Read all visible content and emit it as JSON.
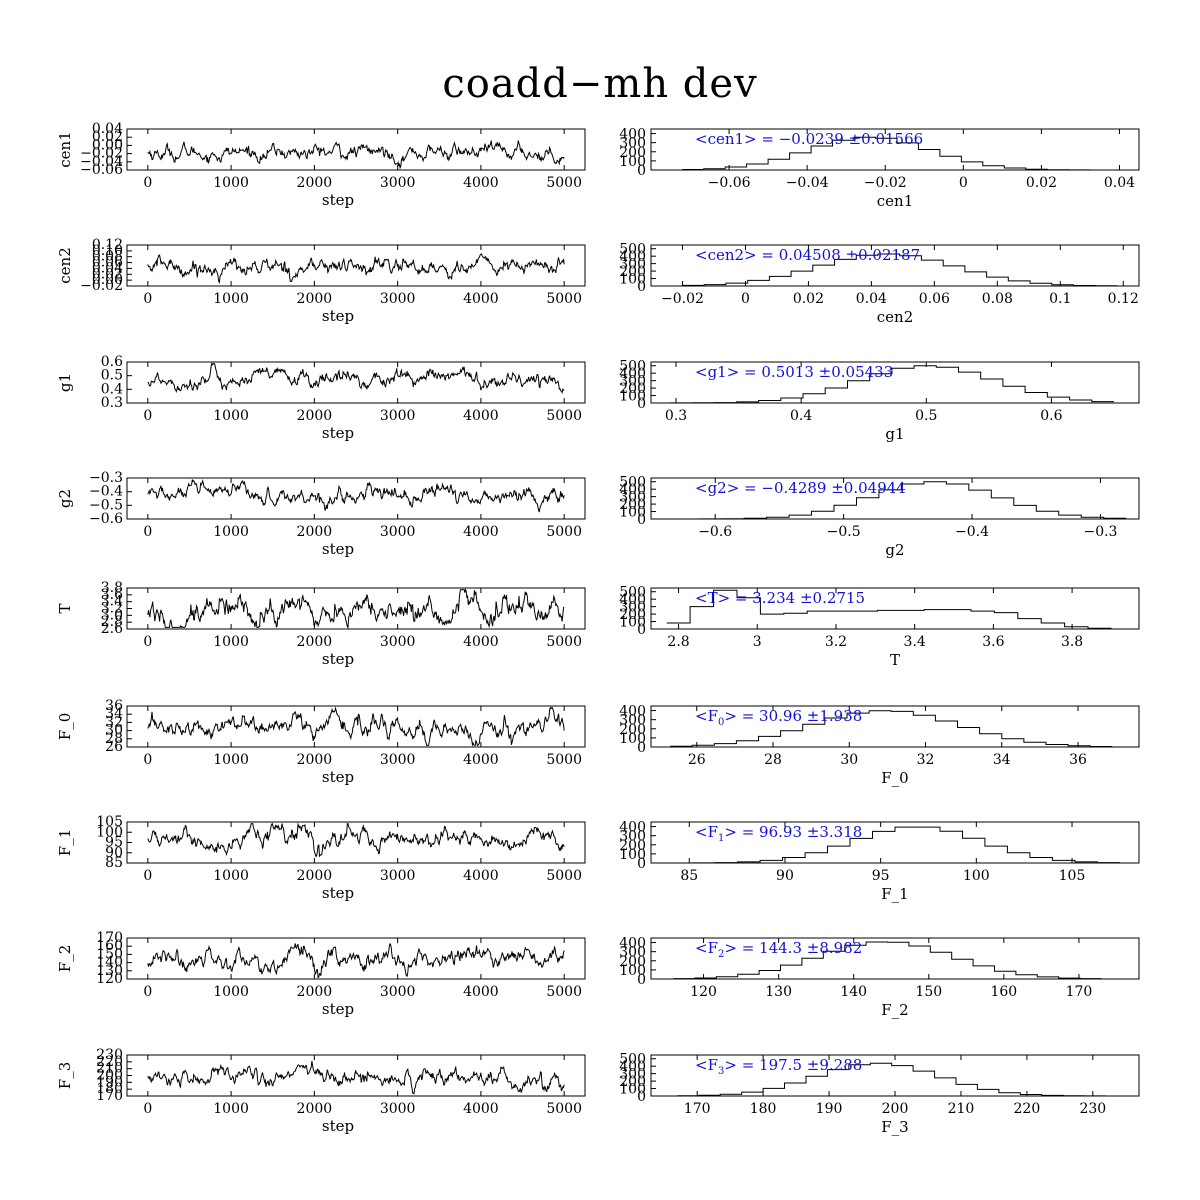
{
  "title": "coadd−mh dev",
  "chart_data": [
    {
      "param": "cen1",
      "trace": {
        "type": "line",
        "xlabel": "step",
        "ylabel": "cen1",
        "xlim": [
          -250,
          5250
        ],
        "xticks": [
          0,
          1000,
          2000,
          3000,
          4000,
          5000
        ],
        "ylim": [
          -0.075,
          0.045
        ],
        "yticks": [
          "0.04",
          "0.02",
          "0.00",
          "−0.02",
          "−0.04",
          "−0.06"
        ],
        "ytick_values": [
          0.04,
          0.02,
          0.0,
          -0.02,
          -0.04,
          -0.06
        ],
        "n_steps": 5000,
        "mean": -0.0239,
        "sd": 0.01566
      },
      "hist": {
        "type": "histogram",
        "xlabel": "cen1",
        "xlim": [
          -0.08,
          0.045
        ],
        "xticks": [
          -0.06,
          -0.04,
          -0.02,
          0,
          0.02,
          0.04
        ],
        "xtick_labels": [
          "−0.06",
          "−0.04",
          "−0.02",
          "0",
          "0.02",
          "0.04"
        ],
        "ylim": [
          0,
          450
        ],
        "yticks": [
          0,
          100,
          200,
          300,
          400
        ],
        "bins": [
          -0.072,
          0.038
        ],
        "mean": -0.0239,
        "sd": 0.01566,
        "peak": 360,
        "label_prefix": "<cen1> = ",
        "mean_text": "−0.0239",
        "sd_text": "±0.01566"
      }
    },
    {
      "param": "cen2",
      "trace": {
        "type": "line",
        "xlabel": "step",
        "ylabel": "cen2",
        "xlim": [
          -250,
          5250
        ],
        "xticks": [
          0,
          1000,
          2000,
          3000,
          4000,
          5000
        ],
        "ylim": [
          -0.025,
          0.125
        ],
        "yticks": [
          "0.12",
          "0.10",
          "0.08",
          "0.06",
          "0.04",
          "0.02",
          "0.00",
          "−0.02"
        ],
        "ytick_values": [
          0.12,
          0.1,
          0.08,
          0.06,
          0.04,
          0.02,
          0.0,
          -0.02
        ],
        "n_steps": 5000,
        "mean": 0.04508,
        "sd": 0.02187
      },
      "hist": {
        "type": "histogram",
        "xlabel": "cen2",
        "xlim": [
          -0.03,
          0.125
        ],
        "xticks": [
          -0.02,
          0,
          0.02,
          0.04,
          0.06,
          0.08,
          0.1,
          0.12
        ],
        "xtick_labels": [
          "−0.02",
          "0",
          "0.02",
          "0.04",
          "0.06",
          "0.08",
          "0.1",
          "0.12"
        ],
        "ylim": [
          0,
          550
        ],
        "yticks": [
          0,
          100,
          200,
          300,
          400,
          500
        ],
        "bins": [
          -0.02,
          0.118
        ],
        "mean": 0.04508,
        "sd": 0.02187,
        "peak": 430,
        "label_prefix": "<cen2> = ",
        "mean_text": "0.04508",
        "sd_text": "±0.02187"
      }
    },
    {
      "param": "g1",
      "trace": {
        "type": "line",
        "xlabel": "step",
        "ylabel": "g1",
        "xlim": [
          -250,
          5250
        ],
        "xticks": [
          0,
          1000,
          2000,
          3000,
          4000,
          5000
        ],
        "ylim": [
          0.28,
          0.66
        ],
        "yticks": [
          "0.6",
          "0.5",
          "0.4",
          "0.3"
        ],
        "ytick_values": [
          0.6,
          0.5,
          0.4,
          0.3
        ],
        "n_steps": 5000,
        "mean": 0.5013,
        "sd": 0.05433
      },
      "hist": {
        "type": "histogram",
        "xlabel": "g1",
        "xlim": [
          0.28,
          0.67
        ],
        "xticks": [
          0.3,
          0.4,
          0.5,
          0.6
        ],
        "xtick_labels": [
          "0.3",
          "0.4",
          "0.5",
          "0.6"
        ],
        "ylim": [
          0,
          550
        ],
        "yticks": [
          0,
          100,
          200,
          300,
          400,
          500
        ],
        "bins": [
          0.295,
          0.65
        ],
        "mean": 0.5013,
        "sd": 0.05433,
        "peak": 500,
        "label_prefix": "<g1> = ",
        "mean_text": "0.5013",
        "sd_text": "±0.05433"
      }
    },
    {
      "param": "g2",
      "trace": {
        "type": "line",
        "xlabel": "step",
        "ylabel": "g2",
        "xlim": [
          -250,
          5250
        ],
        "xticks": [
          0,
          1000,
          2000,
          3000,
          4000,
          5000
        ],
        "ylim": [
          -0.63,
          -0.28
        ],
        "yticks": [
          "−0.3",
          "−0.4",
          "−0.5",
          "−0.6"
        ],
        "ytick_values": [
          -0.3,
          -0.4,
          -0.5,
          -0.6
        ],
        "n_steps": 5000,
        "mean": -0.4289,
        "sd": 0.04944
      },
      "hist": {
        "type": "histogram",
        "xlabel": "g2",
        "xlim": [
          -0.65,
          -0.27
        ],
        "xticks": [
          -0.6,
          -0.5,
          -0.4,
          -0.3
        ],
        "xtick_labels": [
          "−0.6",
          "−0.5",
          "−0.4",
          "−0.3"
        ],
        "ylim": [
          0,
          550
        ],
        "yticks": [
          0,
          100,
          200,
          300,
          400,
          500
        ],
        "bins": [
          -0.63,
          -0.28
        ],
        "mean": -0.4289,
        "sd": 0.04944,
        "peak": 500,
        "label_prefix": "<g2> = ",
        "mean_text": "−0.4289",
        "sd_text": "±0.04944"
      }
    },
    {
      "param": "T",
      "trace": {
        "type": "line",
        "xlabel": "step",
        "ylabel": "T",
        "xlim": [
          -250,
          5250
        ],
        "xticks": [
          0,
          1000,
          2000,
          3000,
          4000,
          5000
        ],
        "ylim": [
          2.75,
          3.9
        ],
        "yticks": [
          "3.8",
          "3.6",
          "3.4",
          "3.2",
          "3.0",
          "2.8",
          "2.6"
        ],
        "ytick_values": [
          3.8,
          3.6,
          3.4,
          3.2,
          3.0,
          2.8,
          2.6
        ],
        "n_steps": 5000,
        "mean": 3.234,
        "sd": 0.2715
      },
      "hist": {
        "type": "histogram",
        "xlabel": "T",
        "xlim": [
          2.73,
          3.97
        ],
        "xticks": [
          2.8,
          3,
          3.2,
          3.4,
          3.6,
          3.8
        ],
        "xtick_labels": [
          "2.8",
          "3",
          "3.2",
          "3.4",
          "3.6",
          "3.8"
        ],
        "ylim": [
          0,
          550
        ],
        "yticks": [
          0,
          100,
          200,
          300,
          400,
          500
        ],
        "bins": [
          2.77,
          3.9
        ],
        "values": [
          80,
          300,
          520,
          420,
          200,
          210,
          240,
          240,
          240,
          250,
          250,
          260,
          260,
          240,
          220,
          140,
          80,
          30,
          10
        ],
        "label_prefix": "<T> = ",
        "mean_text": "3.234",
        "sd_text": "±0.2715"
      }
    },
    {
      "param": "F_0",
      "trace": {
        "type": "line",
        "xlabel": "step",
        "ylabel": "F_0",
        "xlim": [
          -250,
          5250
        ],
        "xticks": [
          0,
          1000,
          2000,
          3000,
          4000,
          5000
        ],
        "ylim": [
          25.5,
          37
        ],
        "yticks": [
          "36",
          "34",
          "32",
          "30",
          "28",
          "26"
        ],
        "ytick_values": [
          36,
          34,
          32,
          30,
          28,
          26
        ],
        "n_steps": 5000,
        "mean": 30.96,
        "sd": 1.938
      },
      "hist": {
        "type": "histogram",
        "xlabel": "F_0",
        "xlim": [
          24.8,
          37.6
        ],
        "xticks": [
          26,
          28,
          30,
          32,
          34,
          36
        ],
        "xtick_labels": [
          "26",
          "28",
          "30",
          "32",
          "34",
          "36"
        ],
        "ylim": [
          0,
          450
        ],
        "yticks": [
          0,
          100,
          200,
          300,
          400
        ],
        "bins": [
          25.3,
          36.9
        ],
        "mean": 30.96,
        "sd": 1.938,
        "peak": 400,
        "label_prefix": "<F",
        "label_sub": "0",
        "label_suffix": "> = ",
        "mean_text": "30.96",
        "sd_text": "±1.938"
      }
    },
    {
      "param": "F_1",
      "trace": {
        "type": "line",
        "xlabel": "step",
        "ylabel": "F_1",
        "xlim": [
          -250,
          5250
        ],
        "xticks": [
          0,
          1000,
          2000,
          3000,
          4000,
          5000
        ],
        "ylim": [
          84,
          106
        ],
        "yticks": [
          "105",
          "100",
          "95",
          "90",
          "85"
        ],
        "ytick_values": [
          105,
          100,
          95,
          90,
          85
        ],
        "n_steps": 5000,
        "mean": 96.93,
        "sd": 3.318
      },
      "hist": {
        "type": "histogram",
        "xlabel": "F_1",
        "xlim": [
          83,
          108.5
        ],
        "xticks": [
          85,
          90,
          95,
          100,
          105
        ],
        "xtick_labels": [
          "85",
          "90",
          "95",
          "100",
          "105"
        ],
        "ylim": [
          0,
          450
        ],
        "yticks": [
          0,
          100,
          200,
          300,
          400
        ],
        "bins": [
          84,
          107.5
        ],
        "mean": 96.93,
        "sd": 3.318,
        "peak": 400,
        "label_prefix": "<F",
        "label_sub": "1",
        "label_suffix": "> = ",
        "mean_text": "96.93",
        "sd_text": "±3.318"
      }
    },
    {
      "param": "F_2",
      "trace": {
        "type": "line",
        "xlabel": "step",
        "ylabel": "F_2",
        "xlim": [
          -250,
          5250
        ],
        "xticks": [
          0,
          1000,
          2000,
          3000,
          4000,
          5000
        ],
        "ylim": [
          118,
          172
        ],
        "yticks": [
          "170",
          "160",
          "150",
          "140",
          "130",
          "120"
        ],
        "ytick_values": [
          170,
          160,
          150,
          140,
          130,
          120
        ],
        "n_steps": 5000,
        "mean": 144.3,
        "sd": 8.982
      },
      "hist": {
        "type": "histogram",
        "xlabel": "F_2",
        "xlim": [
          113,
          178
        ],
        "xticks": [
          120,
          130,
          140,
          150,
          160,
          170
        ],
        "xtick_labels": [
          "120",
          "130",
          "140",
          "150",
          "160",
          "170"
        ],
        "ylim": [
          0,
          450
        ],
        "yticks": [
          0,
          100,
          200,
          300,
          400
        ],
        "bins": [
          116,
          173
        ],
        "mean": 144.3,
        "sd": 8.982,
        "peak": 410,
        "label_prefix": "<F",
        "label_sub": "2",
        "label_suffix": "> = ",
        "mean_text": "144.3",
        "sd_text": "±8.982"
      }
    },
    {
      "param": "F_3",
      "trace": {
        "type": "line",
        "xlabel": "step",
        "ylabel": "F_3",
        "xlim": [
          -250,
          5250
        ],
        "xticks": [
          0,
          1000,
          2000,
          3000,
          4000,
          5000
        ],
        "ylim": [
          168,
          232
        ],
        "yticks": [
          "230",
          "220",
          "210",
          "200",
          "190",
          "180",
          "170"
        ],
        "ytick_values": [
          230,
          220,
          210,
          200,
          190,
          180,
          170
        ],
        "n_steps": 5000,
        "mean": 197.5,
        "sd": 9.288
      },
      "hist": {
        "type": "histogram",
        "xlabel": "F_3",
        "xlim": [
          163,
          237
        ],
        "xticks": [
          170,
          180,
          190,
          200,
          210,
          220,
          230
        ],
        "xtick_labels": [
          "170",
          "180",
          "190",
          "200",
          "210",
          "220",
          "230"
        ],
        "ylim": [
          0,
          550
        ],
        "yticks": [
          0,
          100,
          200,
          300,
          400,
          500
        ],
        "bins": [
          167,
          232
        ],
        "mean": 197.5,
        "sd": 9.288,
        "peak": 440,
        "label_prefix": "<F",
        "label_sub": "3",
        "label_suffix": "> = ",
        "mean_text": "197.5",
        "sd_text": "±9.288"
      }
    }
  ]
}
